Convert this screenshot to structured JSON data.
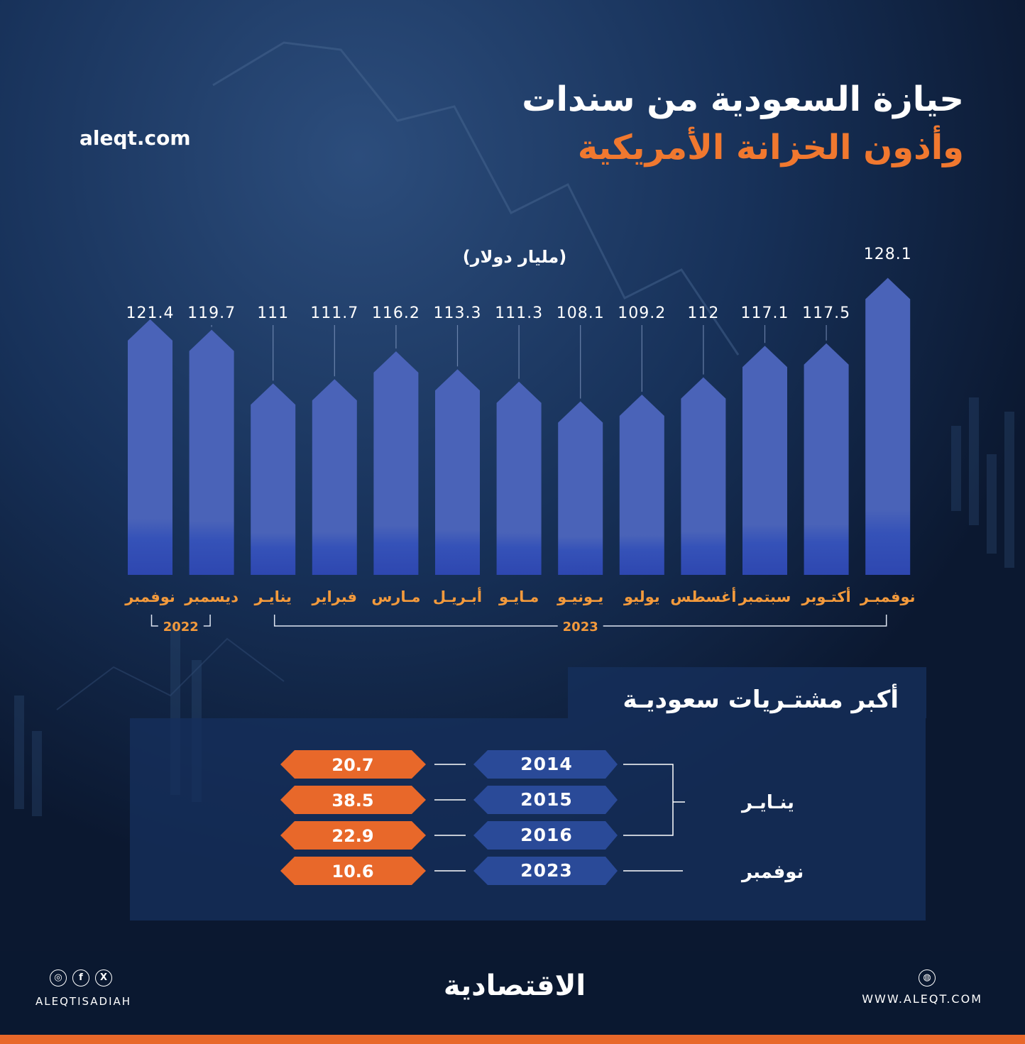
{
  "header": {
    "title_line1": "حيازة السعودية من سندات",
    "title_line2": "وأذون الخزانة الأمريكية",
    "site": "aleqt.com",
    "unit": "(مليار دولار)"
  },
  "colors": {
    "title_accent": "#f0782f",
    "bar": "#4a63b8",
    "month_label": "#f39a3c",
    "value_tag": "#e8682a",
    "year_tag": "#2a4a98"
  },
  "chart_data": {
    "type": "bar",
    "categories": [
      "نوفمبر",
      "ديسمبر",
      "ينايـر",
      "فبراير",
      "مـارس",
      "أبـريـل",
      "مـايـو",
      "يـونيـو",
      "يوليو",
      "أغسطس",
      "سبتمبر",
      "أكتـوبر",
      "نوفمبـر"
    ],
    "values": [
      121.4,
      119.7,
      111,
      111.7,
      116.2,
      113.3,
      111.3,
      108.1,
      109.2,
      112,
      117.1,
      117.5,
      128.1
    ],
    "value_labels": [
      "121.4",
      "119.7",
      "111",
      "111.7",
      "116.2",
      "113.3",
      "111.3",
      "108.1",
      "109.2",
      "112",
      "117.1",
      "117.5",
      "128.1"
    ],
    "year_groups": [
      {
        "label": "2022",
        "start": 0,
        "end": 1
      },
      {
        "label": "2023",
        "start": 2,
        "end": 12
      }
    ],
    "ylabel": "(مليار دولار)",
    "ylim": [
      80,
      130
    ],
    "grid": false
  },
  "panel": {
    "title": "أكبر مشتـريات سعوديـة",
    "rows": [
      {
        "year": "2014",
        "value": "20.7"
      },
      {
        "year": "2015",
        "value": "38.5"
      },
      {
        "year": "2016",
        "value": "22.9"
      },
      {
        "year": "2023",
        "value": "10.6"
      }
    ],
    "group_january": "ينـايـر",
    "group_november": "نوفمبر"
  },
  "footer": {
    "social_handle": "ALEQTISADIAH",
    "social_icons": [
      "instagram-icon",
      "facebook-icon",
      "x-icon"
    ],
    "brand": "الاقتصادية",
    "website": "WWW.ALEQT.COM",
    "web_icon": "dribbble-icon"
  }
}
